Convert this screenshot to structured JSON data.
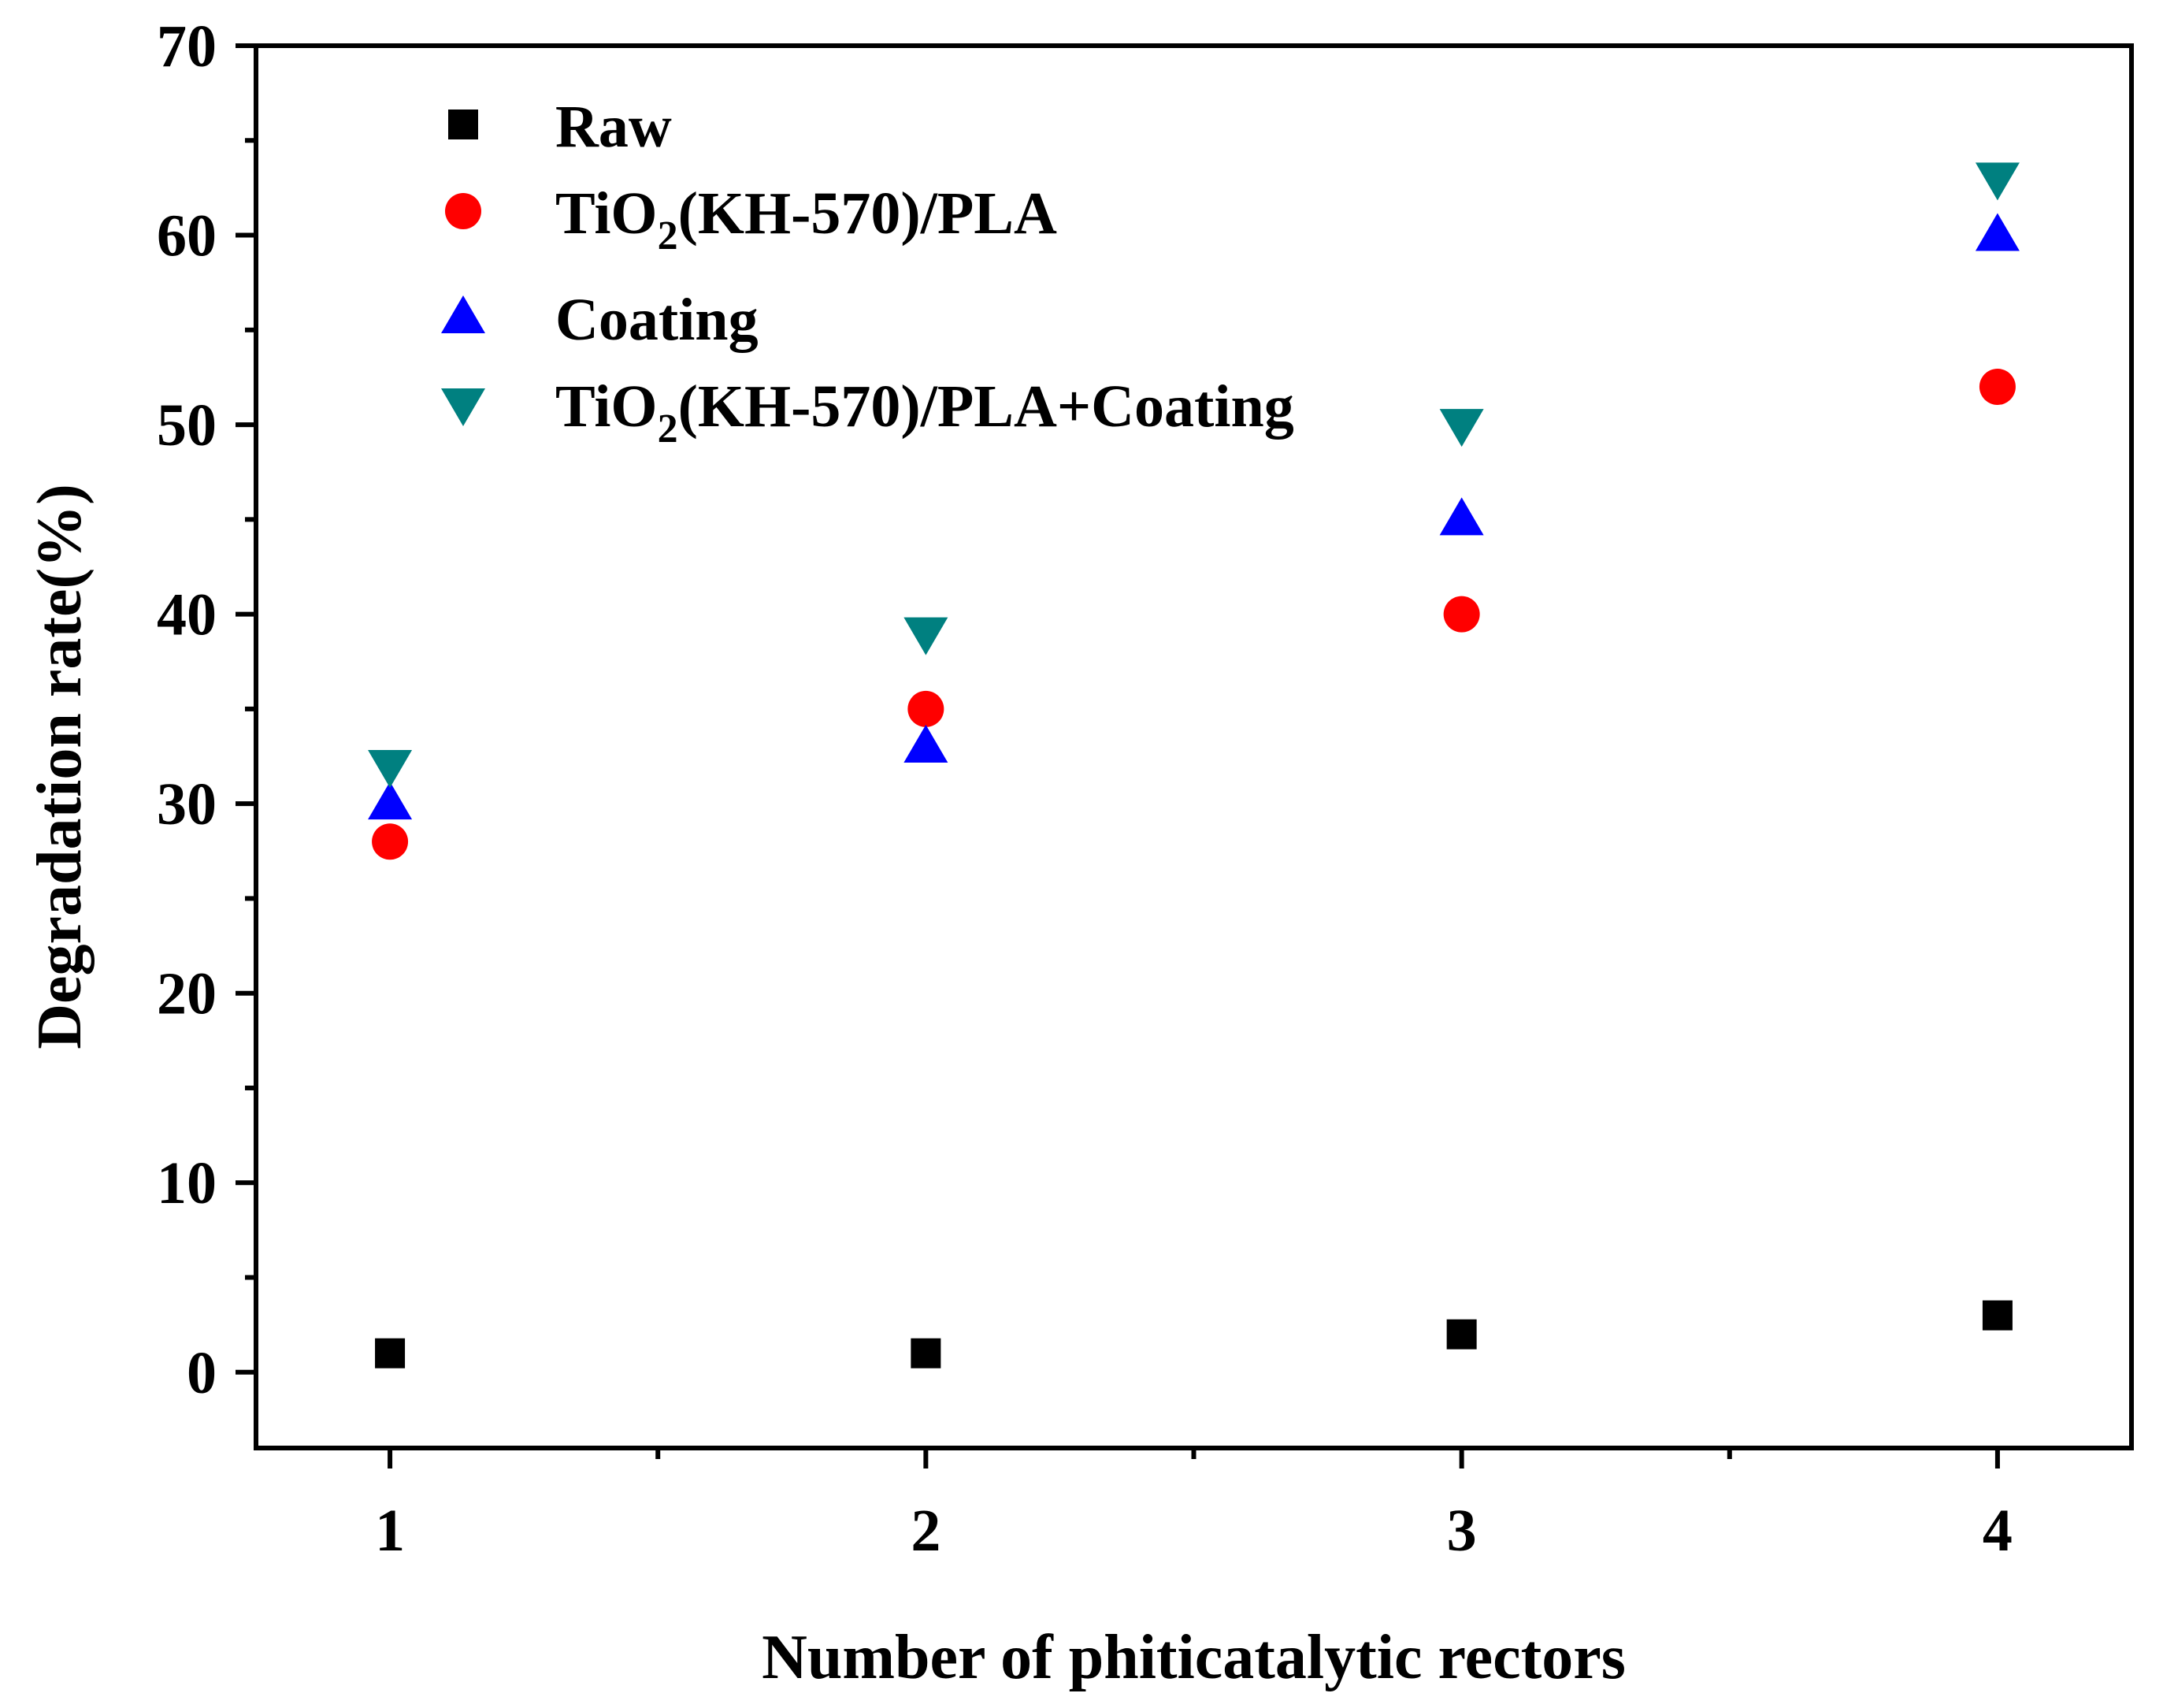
{
  "chart_data": {
    "type": "scatter",
    "title": "",
    "xlabel": "Number of phiticatalytic rectors",
    "ylabel": "Degradation rate(%)",
    "xlim": [
      0.75,
      4.25
    ],
    "ylim": [
      -4,
      70
    ],
    "x_ticks": [
      1,
      2,
      3,
      4
    ],
    "x_minor_ticks": [
      1.5,
      2.5,
      3.5
    ],
    "y_ticks": [
      0,
      10,
      20,
      30,
      40,
      50,
      60,
      70
    ],
    "y_minor_ticks": [
      5,
      15,
      25,
      35,
      45,
      55,
      65
    ],
    "grid": false,
    "legend_position": "top-left",
    "x": [
      1,
      2,
      3,
      4
    ],
    "series": [
      {
        "name": "Raw",
        "legend": {
          "pre": "Raw",
          "sub": "",
          "post": ""
        },
        "marker": "square",
        "color": "#000000",
        "values": [
          1,
          1,
          2,
          3
        ]
      },
      {
        "name": "TiO2(KH-570)/PLA",
        "legend": {
          "pre": "TiO",
          "sub": "2",
          "post": "(KH-570)/PLA"
        },
        "marker": "circle",
        "color": "#ff0000",
        "values": [
          28,
          35,
          40,
          52
        ]
      },
      {
        "name": "Coating",
        "legend": {
          "pre": "Coating",
          "sub": "",
          "post": ""
        },
        "marker": "triangle-up",
        "color": "#0000ff",
        "values": [
          30,
          33,
          45,
          60
        ]
      },
      {
        "name": "TiO2(KH-570)/PLA+Coating",
        "legend": {
          "pre": "TiO",
          "sub": "2",
          "post": "(KH-570)/PLA+Coating"
        },
        "marker": "triangle-down",
        "color": "#008080",
        "values": [
          32,
          39,
          50,
          63
        ]
      }
    ]
  }
}
